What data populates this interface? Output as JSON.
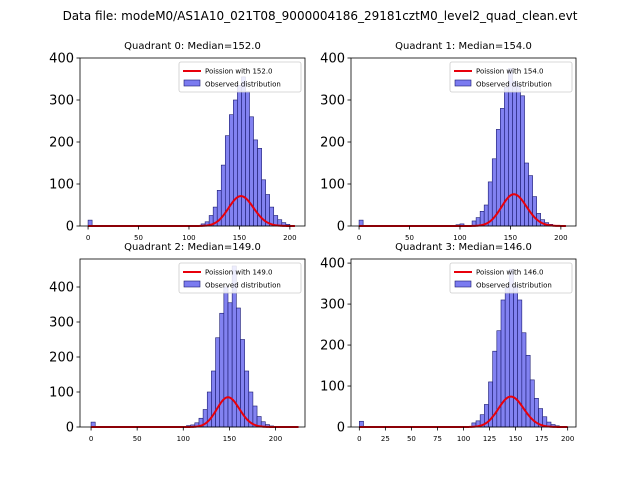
{
  "figure": {
    "suptitle": "Data file: modeM0/AS1A10_021T08_9000004186_29181cztM0_level2_quad_clean.evt"
  },
  "colors": {
    "bar_fill": "#7B7BF0",
    "bar_edge": "#1A1A70",
    "poisson_line": "#E8000B"
  },
  "chart_data": [
    {
      "type": "bar",
      "title": "Quadrant 0: Median=152.0",
      "xlim": [
        -8,
        215
      ],
      "ylim": [
        0,
        400
      ],
      "xticks": [
        0,
        50,
        100,
        150,
        200
      ],
      "yticks": [
        0,
        100,
        200,
        300,
        400
      ],
      "bin_width": 4,
      "legend": {
        "location": "top-right",
        "line_label": "Poission with 152.0",
        "bar_label": "Observed distribution"
      },
      "bins": [
        [
          0,
          14
        ],
        [
          112,
          5
        ],
        [
          116,
          10
        ],
        [
          120,
          25
        ],
        [
          124,
          45
        ],
        [
          128,
          85
        ],
        [
          132,
          145
        ],
        [
          136,
          215
        ],
        [
          140,
          265
        ],
        [
          144,
          300
        ],
        [
          148,
          335
        ],
        [
          152,
          355
        ],
        [
          156,
          320
        ],
        [
          160,
          260
        ],
        [
          164,
          205
        ],
        [
          168,
          185
        ],
        [
          172,
          110
        ],
        [
          176,
          75
        ],
        [
          180,
          45
        ],
        [
          184,
          25
        ],
        [
          188,
          15
        ],
        [
          192,
          8
        ],
        [
          196,
          4
        ]
      ],
      "poisson_mean": 152.0,
      "poisson_scale": 2200,
      "line_range": [
        0,
        205
      ]
    },
    {
      "type": "bar",
      "title": "Quadrant 1: Median=154.0",
      "xlim": [
        -8,
        215
      ],
      "ylim": [
        0,
        400
      ],
      "xticks": [
        0,
        50,
        100,
        150,
        200
      ],
      "yticks": [
        0,
        100,
        200,
        300,
        400
      ],
      "bin_width": 4,
      "legend": {
        "location": "top-right",
        "line_label": "Poission with 154.0",
        "bar_label": "Observed distribution"
      },
      "bins": [
        [
          0,
          14
        ],
        [
          96,
          3
        ],
        [
          100,
          5
        ],
        [
          112,
          12
        ],
        [
          116,
          20
        ],
        [
          120,
          35
        ],
        [
          124,
          50
        ],
        [
          128,
          105
        ],
        [
          132,
          160
        ],
        [
          136,
          230
        ],
        [
          140,
          280
        ],
        [
          144,
          330
        ],
        [
          148,
          375
        ],
        [
          152,
          345
        ],
        [
          156,
          335
        ],
        [
          160,
          310
        ],
        [
          164,
          150
        ],
        [
          168,
          120
        ],
        [
          172,
          70
        ],
        [
          176,
          30
        ],
        [
          180,
          15
        ],
        [
          184,
          8
        ],
        [
          188,
          4
        ]
      ],
      "poisson_mean": 154.0,
      "poisson_scale": 2350,
      "line_range": [
        0,
        205
      ]
    },
    {
      "type": "bar",
      "title": "Quadrant 2: Median=149.0",
      "xlim": [
        -12,
        232
      ],
      "ylim": [
        0,
        480
      ],
      "xticks": [
        0,
        50,
        100,
        150,
        200
      ],
      "yticks": [
        0,
        100,
        200,
        300,
        400
      ],
      "bin_width": 4.5,
      "legend": {
        "location": "top-right",
        "line_label": "Poission with 149.0",
        "bar_label": "Observed distribution"
      },
      "bins": [
        [
          0,
          14
        ],
        [
          103.5,
          4
        ],
        [
          108,
          6
        ],
        [
          112.5,
          12
        ],
        [
          117,
          25
        ],
        [
          121.5,
          50
        ],
        [
          126,
          100
        ],
        [
          130.5,
          160
        ],
        [
          135,
          255
        ],
        [
          139.5,
          325
        ],
        [
          144,
          400
        ],
        [
          148.5,
          355
        ],
        [
          153,
          460
        ],
        [
          157.5,
          340
        ],
        [
          162,
          250
        ],
        [
          166.5,
          160
        ],
        [
          171,
          100
        ],
        [
          175.5,
          60
        ],
        [
          180,
          30
        ],
        [
          184.5,
          15
        ],
        [
          189,
          7
        ],
        [
          193.5,
          3
        ]
      ],
      "poisson_mean": 149.0,
      "poisson_scale": 2600,
      "line_range": [
        0,
        225
      ]
    },
    {
      "type": "bar",
      "title": "Quadrant 3: Median=146.0",
      "xlim": [
        -8,
        208
      ],
      "ylim": [
        0,
        410
      ],
      "xticks": [
        0,
        25,
        50,
        75,
        100,
        125,
        150,
        175,
        200
      ],
      "yticks": [
        0,
        100,
        200,
        300,
        400
      ],
      "bin_width": 4,
      "legend": {
        "location": "top-right",
        "line_label": "Poission with 146.0",
        "bar_label": "Observed distribution"
      },
      "bins": [
        [
          0,
          14
        ],
        [
          108,
          10
        ],
        [
          112,
          15
        ],
        [
          116,
          30
        ],
        [
          120,
          55
        ],
        [
          124,
          110
        ],
        [
          128,
          185
        ],
        [
          132,
          235
        ],
        [
          136,
          310
        ],
        [
          140,
          340
        ],
        [
          144,
          385
        ],
        [
          148,
          345
        ],
        [
          152,
          310
        ],
        [
          156,
          230
        ],
        [
          160,
          175
        ],
        [
          164,
          115
        ],
        [
          168,
          70
        ],
        [
          172,
          45
        ],
        [
          176,
          25
        ],
        [
          180,
          12
        ],
        [
          184,
          6
        ],
        [
          188,
          3
        ]
      ],
      "poisson_mean": 146.0,
      "poisson_scale": 2250,
      "line_range": [
        0,
        200
      ]
    }
  ]
}
